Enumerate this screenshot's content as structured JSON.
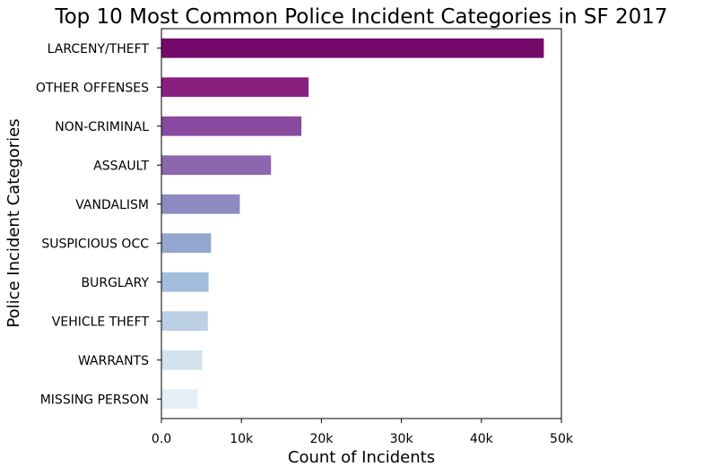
{
  "chart_data": {
    "type": "bar",
    "orientation": "horizontal",
    "title": "Top 10 Most Common Police Incident Categories in SF 2017",
    "xlabel": "Count of Incidents",
    "ylabel": "Police Incident Categories",
    "categories": [
      "LARCENY/THEFT",
      "OTHER OFFENSES",
      "NON-CRIMINAL",
      "ASSAULT",
      "VANDALISM",
      "SUSPICIOUS OCC",
      "BURGLARY",
      "VEHICLE THEFT",
      "WARRANTS",
      "MISSING PERSON"
    ],
    "values": [
      47800,
      18400,
      17500,
      13700,
      9800,
      6200,
      5900,
      5800,
      5100,
      4500
    ],
    "colors": [
      "#760a6b",
      "#89207f",
      "#884a9f",
      "#8c67ad",
      "#8c8ac1",
      "#93a6cf",
      "#a2bedc",
      "#bbcfe5",
      "#d2e2ee",
      "#e4eff6"
    ],
    "xlim": [
      0,
      50000
    ],
    "xticks": [
      0,
      10000,
      20000,
      30000,
      40000,
      50000
    ],
    "xtick_labels": [
      "0.0",
      "10k",
      "20k",
      "30k",
      "40k",
      "50k"
    ],
    "grid": false,
    "legend": "none"
  }
}
